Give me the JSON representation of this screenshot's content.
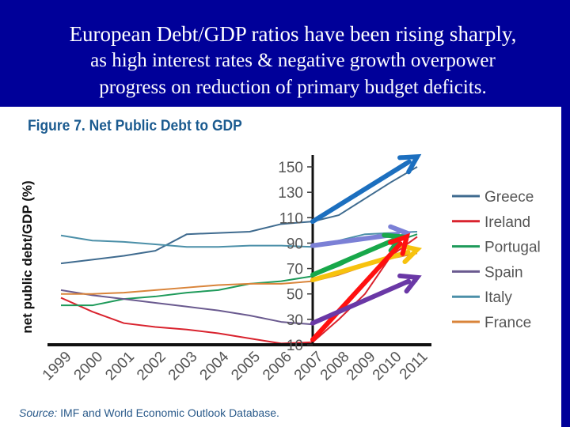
{
  "slide": {
    "title_line1": "European Debt/GDP ratios have been rising sharply,",
    "title_line2": "as high interest rates & negative growth overpower",
    "title_line3": "progress on reduction of primary budget deficits."
  },
  "colors": {
    "background": "#000099",
    "figure_title": "#1a5a8f"
  },
  "chart_data": {
    "type": "line",
    "title": "Figure 7. Net Public Debt to GDP",
    "xlabel": "",
    "ylabel": "net public debt/GDP (%)",
    "ylim": [
      10,
      150
    ],
    "yticks": [
      "150",
      "130",
      "110",
      "90",
      "70",
      "50",
      "30",
      "10"
    ],
    "categories": [
      "1999",
      "2000",
      "2001",
      "2002",
      "2003",
      "2004",
      "2005",
      "2006",
      "2007",
      "2008",
      "2009",
      "2010",
      "2011"
    ],
    "legend_position": "right",
    "grid": false,
    "series": [
      {
        "name": "Greece",
        "color": "#3f6b8f",
        "values": [
          74,
          77,
          80,
          84,
          97,
          98,
          99,
          105,
          107,
          112,
          125,
          138,
          150
        ]
      },
      {
        "name": "Ireland",
        "color": "#d9232e",
        "values": [
          47,
          36,
          27,
          24,
          22,
          19,
          15,
          11,
          12,
          30,
          50,
          80,
          95
        ]
      },
      {
        "name": "Portugal",
        "color": "#1e9a5a",
        "values": [
          41,
          41,
          46,
          48,
          51,
          53,
          58,
          60,
          64,
          72,
          82,
          90,
          97
        ]
      },
      {
        "name": "Spain",
        "color": "#6a5a8f",
        "values": [
          53,
          49,
          46,
          43,
          40,
          37,
          33,
          28,
          26,
          35,
          45,
          55,
          60
        ]
      },
      {
        "name": "Italy",
        "color": "#4b8fa8",
        "values": [
          96,
          92,
          91,
          89,
          87,
          87,
          88,
          88,
          87,
          92,
          97,
          98,
          99
        ]
      },
      {
        "name": "France",
        "color": "#d9843a",
        "values": [
          50,
          50,
          51,
          53,
          55,
          57,
          58,
          58,
          60,
          65,
          72,
          78,
          82
        ]
      }
    ],
    "annotations": [
      {
        "type": "arrow",
        "color": "#1c6fbf",
        "from": [
          "2007",
          107
        ],
        "to": [
          "2011",
          158
        ]
      },
      {
        "type": "arrow",
        "color": "#7b80d6",
        "from": [
          "2007",
          88
        ],
        "to": [
          "2010.6",
          98
        ]
      },
      {
        "type": "arrow",
        "color": "#18a84a",
        "from": [
          "2007",
          65
        ],
        "to": [
          "2010.4",
          95
        ]
      },
      {
        "type": "arrow",
        "color": "#f7c20e",
        "from": [
          "2007",
          61
        ],
        "to": [
          "2011",
          85
        ]
      },
      {
        "type": "arrow",
        "color": "#ff1010",
        "from": [
          "2007",
          14
        ],
        "to": [
          "2010.6",
          95
        ]
      },
      {
        "type": "arrow",
        "color": "#6a38a6",
        "from": [
          "2007",
          27
        ],
        "to": [
          "2011",
          63
        ]
      }
    ],
    "source_label": "Source:",
    "source_text": " IMF and World Economic Outlook Database."
  }
}
